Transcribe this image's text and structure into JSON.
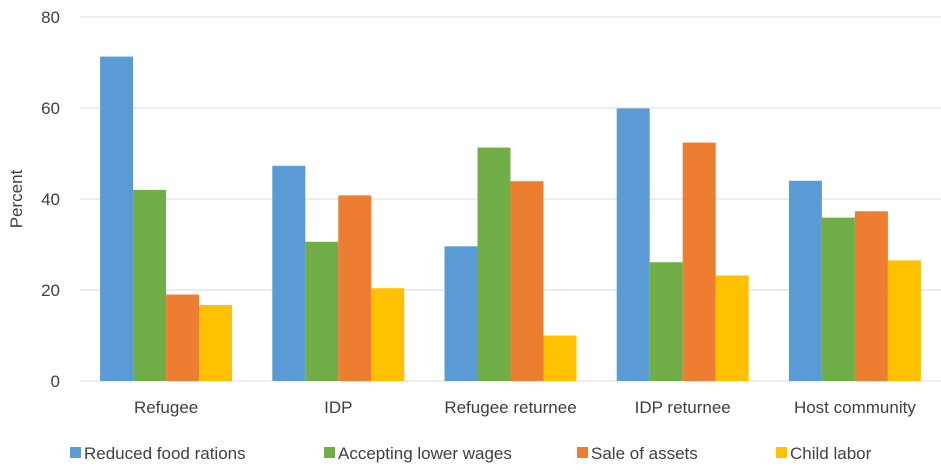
{
  "chart_data": {
    "type": "bar",
    "title": "",
    "xlabel": "",
    "ylabel": "Percent",
    "ylim": [
      0,
      80
    ],
    "yticks": [
      0,
      20,
      40,
      60,
      80
    ],
    "grid": true,
    "legend_position": "bottom",
    "categories": [
      "Refugee",
      "IDP",
      "Refugee returnee",
      "IDP returnee",
      "Host community"
    ],
    "series": [
      {
        "name": "Reduced food rations",
        "color": "#5B9BD5",
        "values": [
          71.3,
          47.3,
          29.6,
          59.9,
          44.0
        ]
      },
      {
        "name": "Accepting lower wages",
        "color": "#70AD47",
        "values": [
          42.0,
          30.6,
          51.3,
          26.1,
          35.9
        ]
      },
      {
        "name": "Sale of assets",
        "color": "#ED7D31",
        "values": [
          19.0,
          40.8,
          43.9,
          52.4,
          37.3
        ]
      },
      {
        "name": "Child labor",
        "color": "#FFC000",
        "values": [
          16.7,
          20.4,
          10.0,
          23.2,
          26.5
        ]
      }
    ]
  }
}
